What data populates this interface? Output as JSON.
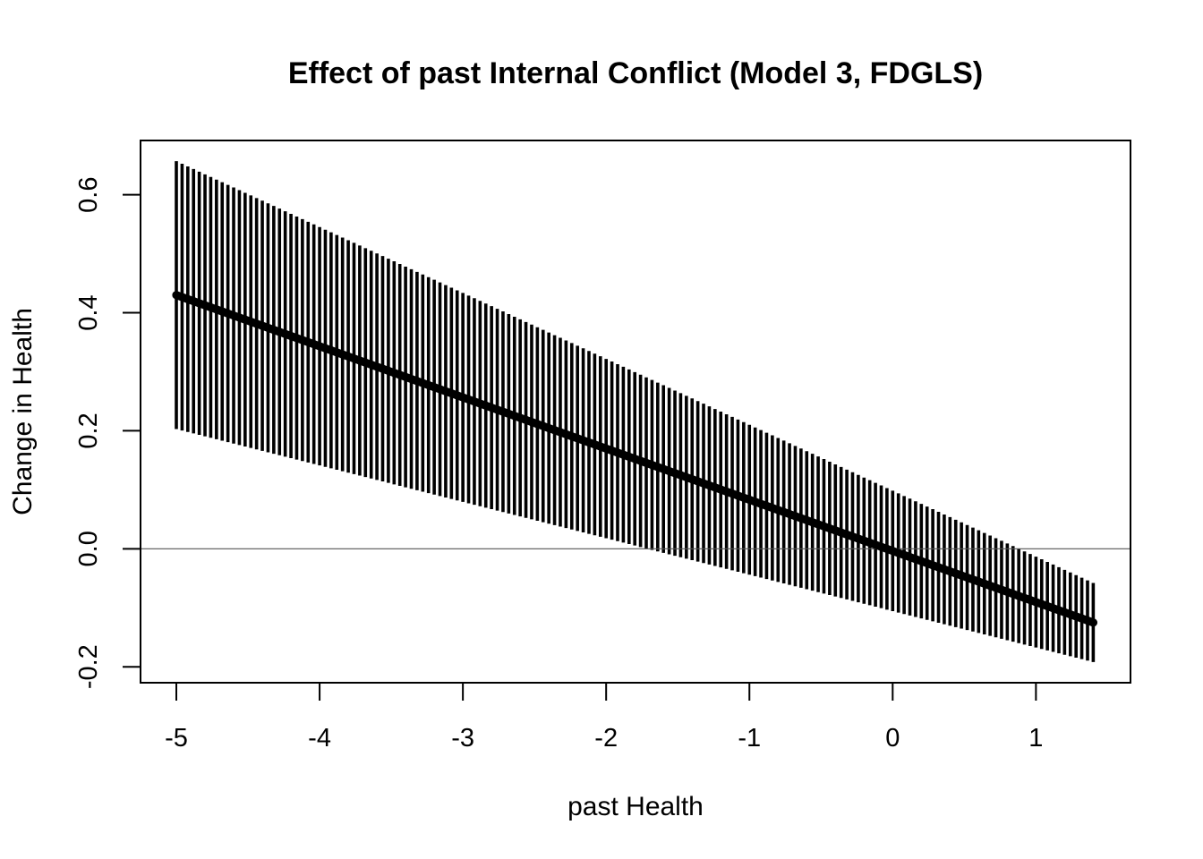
{
  "chart_data": {
    "type": "line",
    "title": "Effect of past Internal Conflict (Model 3, FDGLS)",
    "xlabel": "past Health",
    "ylabel": "Change in Health",
    "xlim": [
      -5.25,
      1.66
    ],
    "ylim": [
      -0.227,
      0.692
    ],
    "x_ticks": [
      -5,
      -4,
      -3,
      -2,
      -1,
      0,
      1
    ],
    "x_tick_labels": [
      "-5",
      "-4",
      "-3",
      "-2",
      "-1",
      "0",
      "1"
    ],
    "y_ticks": [
      -0.2,
      0.0,
      0.2,
      0.4,
      0.6
    ],
    "y_tick_labels": [
      "-0.2",
      "0.0",
      "0.2",
      "0.4",
      "0.6"
    ],
    "reference_line_y": 0.0,
    "grid": false,
    "legend": "none",
    "x_range": [
      -5,
      1.4
    ],
    "n_points": 161,
    "effect_line": {
      "x_start": -5,
      "y_start": 0.43,
      "x_end": 1.4,
      "y_end": -0.125
    },
    "ci_lower": {
      "x_start": -5,
      "y_start": 0.203,
      "x_end": 1.4,
      "y_end": -0.192
    },
    "ci_upper": {
      "x_start": -5,
      "y_start": 0.657,
      "x_end": 1.4,
      "y_end": -0.058
    },
    "colors": {
      "effect": "#000000",
      "ci": "#000000",
      "reference": "#555555"
    }
  }
}
